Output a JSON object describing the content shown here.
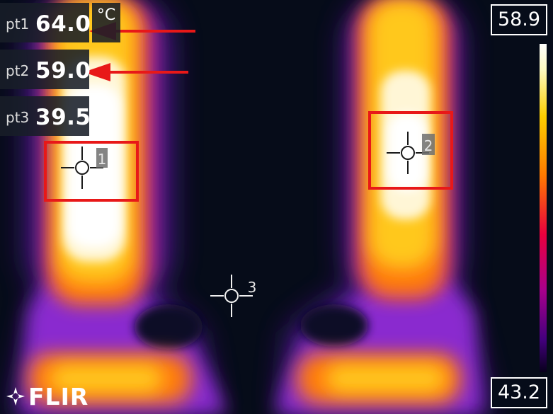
{
  "measurements": [
    {
      "label": "pt1",
      "value": "64.0"
    },
    {
      "label": "pt2",
      "value": "59.0"
    },
    {
      "label": "pt3",
      "value": "39.5"
    }
  ],
  "unit": "°C",
  "scale": {
    "max": "58.9",
    "min": "43.2"
  },
  "spot_markers": [
    {
      "number": "1"
    },
    {
      "number": "2"
    },
    {
      "number": "3"
    }
  ],
  "brand": "FLIR",
  "colors": {
    "annotation_red": "#e81818",
    "background": "#060c19",
    "hot": "#ffffff",
    "warm": "#ffb000",
    "cool": "#7a22c8"
  }
}
